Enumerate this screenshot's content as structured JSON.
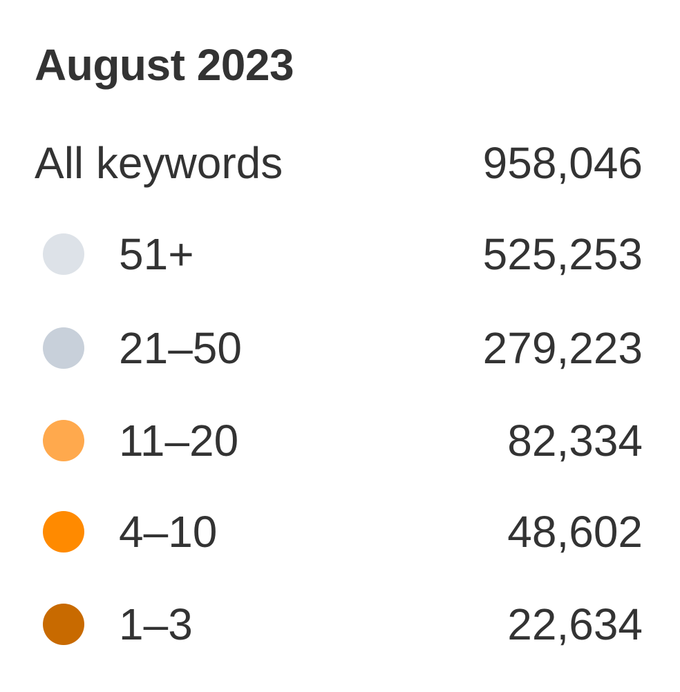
{
  "period": "August 2023",
  "total": {
    "label": "All keywords",
    "value": "958,046"
  },
  "tiers": [
    {
      "label": "51+",
      "value": "525,253",
      "color": "#dde2e8",
      "icon": "legend-dot-icon"
    },
    {
      "label": "21–50",
      "value": "279,223",
      "color": "#c8d0da",
      "icon": "legend-dot-icon"
    },
    {
      "label": "11–20",
      "value": "82,334",
      "color": "#ffa94d",
      "icon": "legend-dot-icon"
    },
    {
      "label": "4–10",
      "value": "48,602",
      "color": "#ff8a00",
      "icon": "legend-dot-icon"
    },
    {
      "label": "1–3",
      "value": "22,634",
      "color": "#c86a00",
      "icon": "legend-dot-icon"
    }
  ]
}
